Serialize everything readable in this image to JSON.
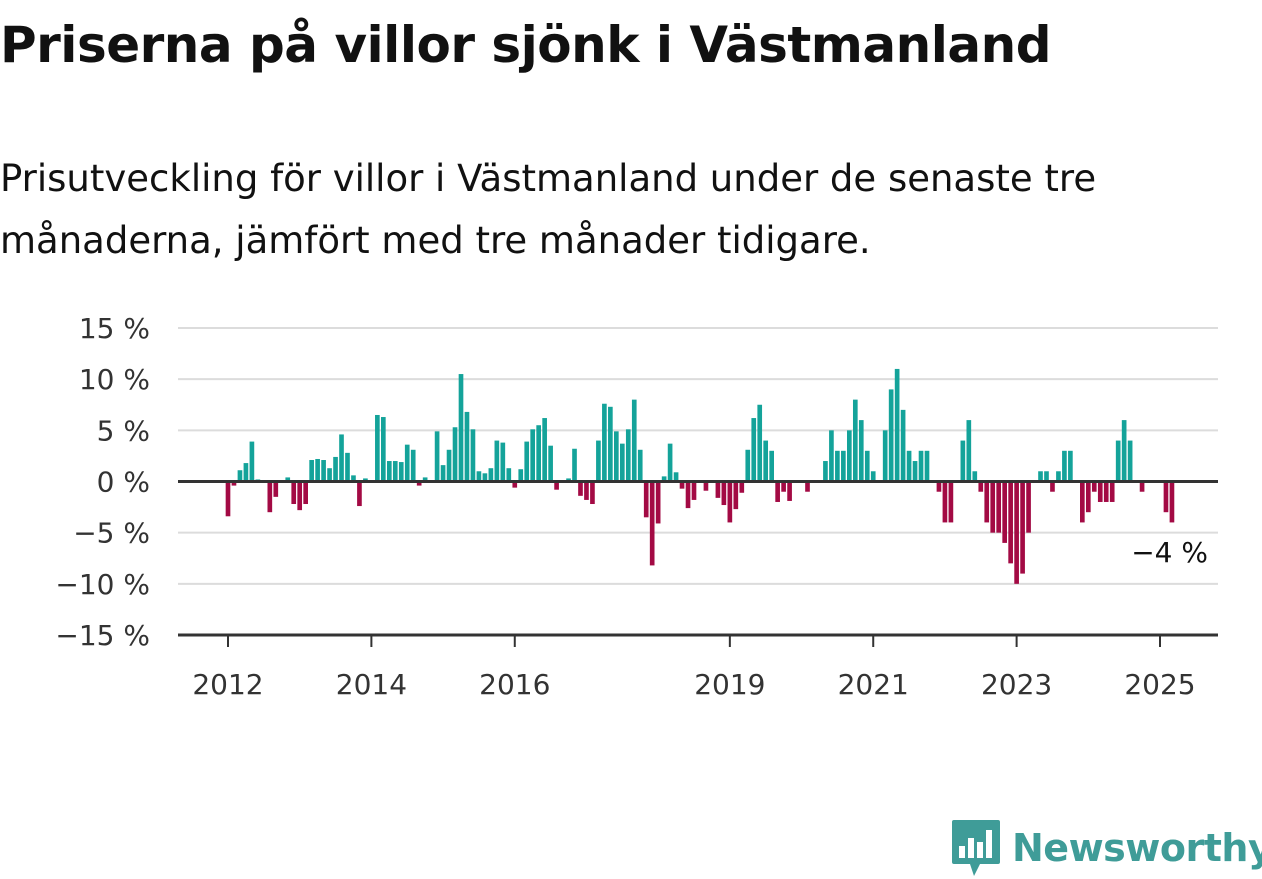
{
  "title": "Priserna på villor sjönk i Västmanland",
  "subtitle": "Prisutveckling för villor i Västmanland under de senaste tre månaderna, jämfört med tre månader tidigare.",
  "brand": {
    "name": "Newsworthy",
    "color": "#3f9c98",
    "icon": "bar-chart-badge-icon"
  },
  "colors": {
    "positive": "#14a39a",
    "negative": "#a30a44",
    "grid": "#dcdcdc",
    "axis": "#333333"
  },
  "chart_data": {
    "type": "bar",
    "title": "Priserna på villor sjönk i Västmanland",
    "xlabel": "",
    "ylabel": "",
    "ylim": [
      -15,
      15
    ],
    "yticks": [
      15,
      10,
      5,
      0,
      -5,
      -10,
      -15
    ],
    "ytick_labels": [
      "15 %",
      "10 %",
      "5 %",
      "0 %",
      "−5 %",
      "−10 %",
      "−15 %"
    ],
    "xticks": [
      {
        "label": "2012",
        "date": "2012-01"
      },
      {
        "label": "2014",
        "date": "2014-01"
      },
      {
        "label": "2016",
        "date": "2016-01"
      },
      {
        "label": "2019",
        "date": "2019-01"
      },
      {
        "label": "2021",
        "date": "2021-01"
      },
      {
        "label": "2023",
        "date": "2023-01"
      },
      {
        "label": "2025",
        "date": "2025-01"
      }
    ],
    "grid": true,
    "start_month": "2012-01",
    "end_month": "2025-01",
    "values": [
      -3.4,
      -0.4,
      1.1,
      1.8,
      3.9,
      0.2,
      0.0,
      -3.0,
      -1.5,
      0.0,
      0.4,
      -2.2,
      -2.8,
      -2.2,
      2.1,
      2.2,
      2.1,
      1.3,
      2.4,
      4.6,
      2.8,
      0.6,
      -2.4,
      0.3,
      0.0,
      6.5,
      6.3,
      2.0,
      2.0,
      1.9,
      3.6,
      3.1,
      -0.4,
      0.4,
      0.0,
      4.9,
      1.6,
      3.1,
      5.3,
      10.5,
      6.8,
      5.1,
      1.0,
      0.8,
      1.3,
      4.0,
      3.8,
      1.3,
      -0.6,
      1.2,
      3.9,
      5.1,
      5.5,
      6.2,
      3.5,
      -0.8,
      0.0,
      0.3,
      3.2,
      -1.4,
      -1.8,
      -2.2,
      4.0,
      7.6,
      7.3,
      4.9,
      3.7,
      5.1,
      8.0,
      3.1,
      -3.5,
      -8.2,
      -4.1,
      0.5,
      3.7,
      0.9,
      -0.7,
      -2.6,
      -1.8,
      0.0,
      -0.9,
      0.0,
      -1.6,
      -2.3,
      -4.0,
      -2.7,
      -1.1,
      3.1,
      6.2,
      7.5,
      4.0,
      3.0,
      -2.0,
      -1.0,
      -1.9,
      0.0,
      0.0,
      -1.0,
      0.0,
      0.0,
      2.0,
      5.0,
      3.0,
      3.0,
      5.0,
      8.0,
      6.0,
      3.0,
      1.0,
      0.0,
      5.0,
      9.0,
      11.0,
      7.0,
      3.0,
      2.0,
      3.0,
      3.0,
      0.0,
      -1.0,
      -4.0,
      -4.0,
      0.0,
      4.0,
      6.0,
      1.0,
      -1.0,
      -4.0,
      -5.0,
      -5.0,
      -6.0,
      -8.0,
      -10.0,
      -9.0,
      -5.0,
      0.0,
      1.0,
      1.0,
      -1.0,
      1.0,
      3.0,
      3.0,
      0.0,
      -4.0,
      -3.0,
      -1.0,
      -2.0,
      -2.0,
      -2.0,
      4.0,
      6.0,
      4.0,
      0.0,
      -1.0,
      0.0,
      0.0,
      0.0,
      -3.0,
      -4.0
    ],
    "last_value_label": "−4 %"
  }
}
